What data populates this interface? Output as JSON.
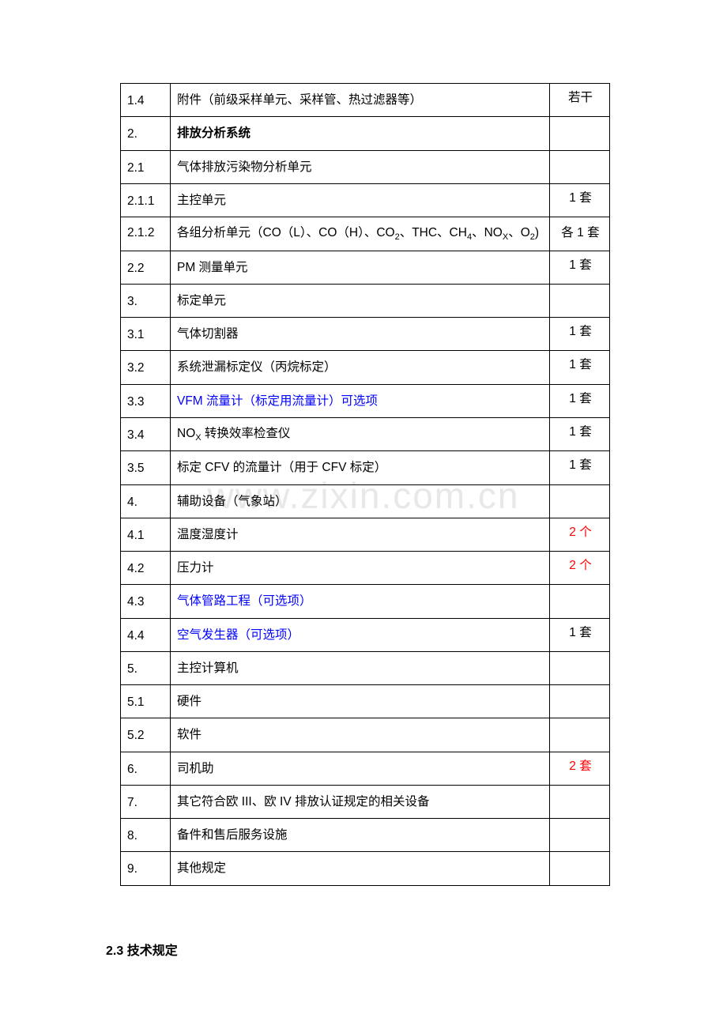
{
  "watermark": "www.zixin.com.cn",
  "colors": {
    "text": "#000000",
    "blue_link": "#0000ff",
    "red_text": "#ff0000",
    "border": "#000000",
    "background": "#ffffff",
    "watermark": "#e8e8e8"
  },
  "table": {
    "rows": [
      {
        "num": "1.4",
        "desc": "附件（前级采样单元、采样管、热过滤器等）",
        "qty": "若干",
        "bold": false
      },
      {
        "num": "2.",
        "desc": "排放分析系统",
        "qty": "",
        "bold": true
      },
      {
        "num": "2.1",
        "desc": "气体排放污染物分析单元",
        "qty": "",
        "bold": false
      },
      {
        "num": "2.1.1",
        "desc": "主控单元",
        "qty": "1 套",
        "bold": false
      },
      {
        "num": "2.1.2",
        "desc_html": "各组分析单元（CO（L）、CO（H）、CO<sub>2</sub>、THC、CH<sub>4</sub>、NO<sub>X</sub>、O<sub>2</sub>)",
        "qty": "各 1 套",
        "bold": false,
        "tall": true
      },
      {
        "num": "2.2",
        "desc": "PM 测量单元",
        "qty": "1 套",
        "bold": false
      },
      {
        "num": "3.",
        "desc": "标定单元",
        "qty": "",
        "bold": false
      },
      {
        "num": "3.1",
        "desc": "气体切割器",
        "qty": "1 套",
        "bold": false
      },
      {
        "num": "3.2",
        "desc": "系统泄漏标定仪（丙烷标定）",
        "qty": "1 套",
        "bold": false
      },
      {
        "num": "3.3",
        "desc": "VFM 流量计（标定用流量计）可选项",
        "qty": "1 套",
        "bold": false,
        "desc_color": "blue"
      },
      {
        "num": "3.4",
        "desc_html": "NO<sub>X</sub> 转换效率检查仪",
        "qty": "1 套",
        "bold": false
      },
      {
        "num": "3.5",
        "desc": "标定 CFV 的流量计（用于 CFV 标定）",
        "qty": "1 套",
        "bold": false
      },
      {
        "num": "4.",
        "desc": "辅助设备（气象站）",
        "qty": "",
        "bold": false
      },
      {
        "num": "4.1",
        "desc": "温度湿度计",
        "qty": "2 个",
        "bold": false,
        "qty_color": "red"
      },
      {
        "num": "4.2",
        "desc": "压力计",
        "qty": "2 个",
        "bold": false,
        "qty_color": "red"
      },
      {
        "num": "4.3",
        "desc": "气体管路工程（可选项）",
        "qty": "",
        "bold": false,
        "desc_color": "blue"
      },
      {
        "num": "4.4",
        "desc": "空气发生器（可选项）",
        "qty": "1 套",
        "bold": false,
        "desc_color": "blue"
      },
      {
        "num": "5.",
        "desc": "主控计算机",
        "qty": "",
        "bold": false
      },
      {
        "num": "5.1",
        "desc": "硬件",
        "qty": "",
        "bold": false
      },
      {
        "num": "5.2",
        "desc": "软件",
        "qty": "",
        "bold": false
      },
      {
        "num": "6.",
        "desc": "司机助",
        "qty": "2 套",
        "bold": false,
        "qty_color": "red"
      },
      {
        "num": "7.",
        "desc": "其它符合欧 III、欧 IV 排放认证规定的相关设备",
        "qty": "",
        "bold": false
      },
      {
        "num": "8.",
        "desc": "备件和售后服务设施",
        "qty": "",
        "bold": false
      },
      {
        "num": "9.",
        "desc": "其他规定",
        "qty": "",
        "bold": false
      }
    ]
  },
  "section_heading": "2.3 技术规定"
}
